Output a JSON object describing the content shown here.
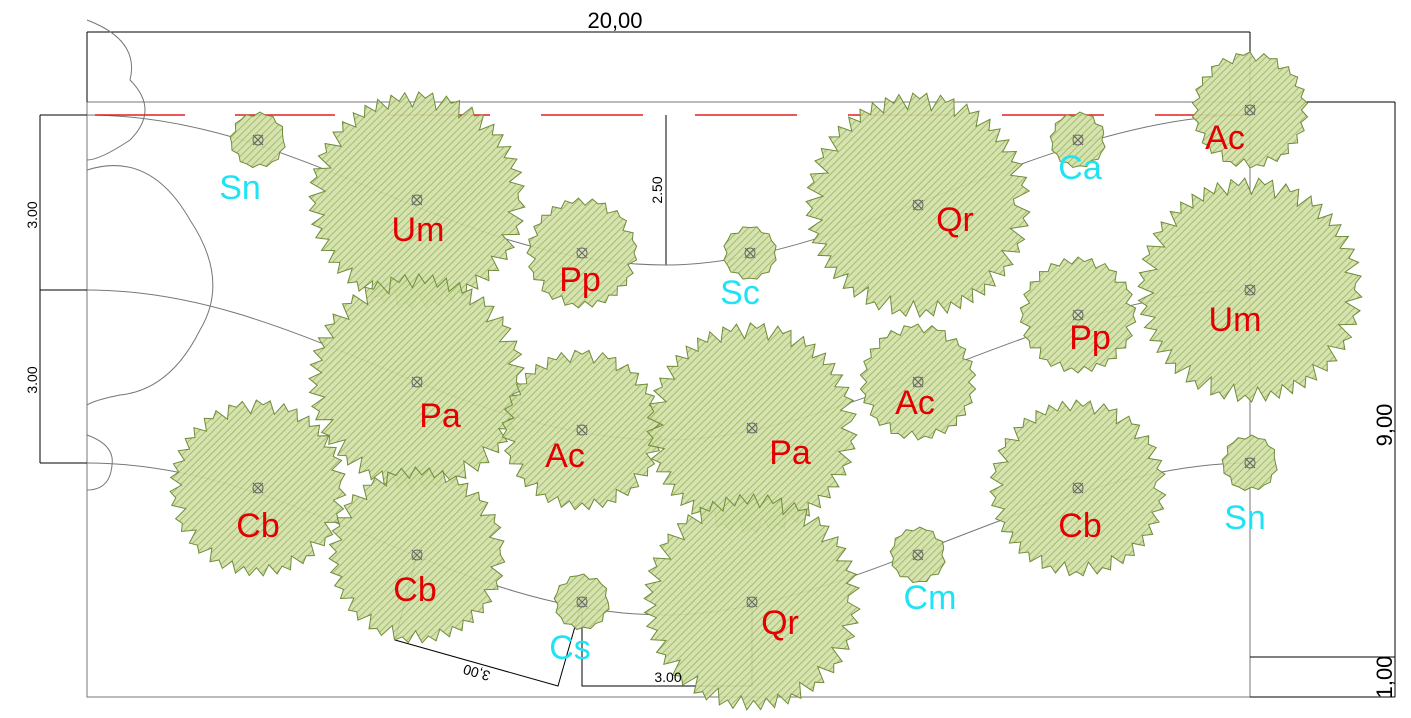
{
  "dimensions": {
    "width": "20,00",
    "depth": "9,00",
    "margin": "1,00",
    "row_spacing_top": "3.00",
    "row_spacing_bottom": "3.00",
    "curve_depth": "2.50",
    "diagonal_spacing": "3,00",
    "bottom_spacing": "3.00"
  },
  "plants": [
    {
      "label": "Sn"
    },
    {
      "label": "Um"
    },
    {
      "label": "Pp"
    },
    {
      "label": "Sc"
    },
    {
      "label": "Qr"
    },
    {
      "label": "Ca"
    },
    {
      "label": "Ac"
    },
    {
      "label": "Um"
    },
    {
      "label": "Pp"
    },
    {
      "label": "Pa"
    },
    {
      "label": "Ac"
    },
    {
      "label": "Pa"
    },
    {
      "label": "Ac"
    },
    {
      "label": "Cb"
    },
    {
      "label": "Cb"
    },
    {
      "label": "Cs"
    },
    {
      "label": "Qr"
    },
    {
      "label": "Cm"
    },
    {
      "label": "Cb"
    },
    {
      "label": "Sn"
    }
  ]
}
